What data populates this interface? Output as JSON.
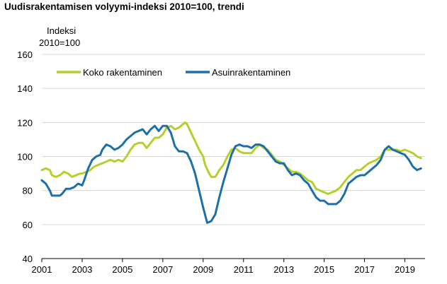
{
  "chart_title": "Uudisrakentamisen volyymi-indeksi 2010=100, trendi",
  "chart_data": {
    "type": "line",
    "title": "Uudisrakentamisen volyymi-indeksi 2010=100, trendi",
    "ylabel_lines": [
      "Indeksi",
      "2010=100"
    ],
    "xlabel": "",
    "xlim": [
      2001,
      2020
    ],
    "ylim": [
      40,
      160
    ],
    "yticks": [
      40,
      60,
      80,
      100,
      120,
      140,
      160
    ],
    "xticks": [
      2001,
      2003,
      2005,
      2007,
      2009,
      2011,
      2013,
      2015,
      2017,
      2019
    ],
    "grid": true,
    "legend_position": "top-left",
    "series": [
      {
        "name": "Koko rakentaminen",
        "color": "#b5cf2b",
        "points": [
          [
            2001.0,
            92
          ],
          [
            2001.2,
            93
          ],
          [
            2001.4,
            92
          ],
          [
            2001.5,
            89
          ],
          [
            2001.7,
            88
          ],
          [
            2001.9,
            89
          ],
          [
            2002.0,
            90
          ],
          [
            2002.1,
            91
          ],
          [
            2002.3,
            90
          ],
          [
            2002.5,
            88
          ],
          [
            2002.7,
            89
          ],
          [
            2002.9,
            90
          ],
          [
            2003.0,
            90
          ],
          [
            2003.2,
            91
          ],
          [
            2003.4,
            92
          ],
          [
            2003.6,
            94
          ],
          [
            2003.8,
            95
          ],
          [
            2004.0,
            96
          ],
          [
            2004.2,
            97
          ],
          [
            2004.4,
            98
          ],
          [
            2004.6,
            97
          ],
          [
            2004.8,
            98
          ],
          [
            2005.0,
            97
          ],
          [
            2005.2,
            100
          ],
          [
            2005.4,
            104
          ],
          [
            2005.6,
            107
          ],
          [
            2005.8,
            108
          ],
          [
            2006.0,
            108
          ],
          [
            2006.2,
            105
          ],
          [
            2006.4,
            108
          ],
          [
            2006.6,
            111
          ],
          [
            2006.8,
            111
          ],
          [
            2007.0,
            113
          ],
          [
            2007.2,
            117
          ],
          [
            2007.4,
            118
          ],
          [
            2007.6,
            116
          ],
          [
            2007.8,
            117
          ],
          [
            2008.0,
            119
          ],
          [
            2008.1,
            120
          ],
          [
            2008.2,
            119
          ],
          [
            2008.4,
            114
          ],
          [
            2008.6,
            109
          ],
          [
            2008.8,
            104
          ],
          [
            2009.0,
            100
          ],
          [
            2009.1,
            95
          ],
          [
            2009.3,
            90
          ],
          [
            2009.4,
            88
          ],
          [
            2009.6,
            88
          ],
          [
            2009.8,
            92
          ],
          [
            2010.0,
            95
          ],
          [
            2010.2,
            100
          ],
          [
            2010.4,
            104
          ],
          [
            2010.6,
            105
          ],
          [
            2010.8,
            103
          ],
          [
            2011.0,
            102
          ],
          [
            2011.2,
            102
          ],
          [
            2011.4,
            102
          ],
          [
            2011.6,
            105
          ],
          [
            2011.8,
            107
          ],
          [
            2012.0,
            105
          ],
          [
            2012.2,
            104
          ],
          [
            2012.4,
            101
          ],
          [
            2012.6,
            98
          ],
          [
            2012.8,
            97
          ],
          [
            2013.0,
            95
          ],
          [
            2013.2,
            93
          ],
          [
            2013.4,
            91
          ],
          [
            2013.6,
            91
          ],
          [
            2013.8,
            90
          ],
          [
            2014.0,
            88
          ],
          [
            2014.2,
            86
          ],
          [
            2014.4,
            85
          ],
          [
            2014.6,
            81
          ],
          [
            2014.8,
            80
          ],
          [
            2015.0,
            79
          ],
          [
            2015.2,
            78
          ],
          [
            2015.4,
            79
          ],
          [
            2015.6,
            80
          ],
          [
            2015.8,
            82
          ],
          [
            2016.0,
            85
          ],
          [
            2016.2,
            88
          ],
          [
            2016.4,
            90
          ],
          [
            2016.6,
            92
          ],
          [
            2016.8,
            92
          ],
          [
            2017.0,
            94
          ],
          [
            2017.2,
            96
          ],
          [
            2017.4,
            97
          ],
          [
            2017.6,
            98
          ],
          [
            2017.8,
            100
          ],
          [
            2018.0,
            104
          ],
          [
            2018.2,
            104
          ],
          [
            2018.4,
            104
          ],
          [
            2018.6,
            104
          ],
          [
            2018.8,
            103
          ],
          [
            2019.0,
            104
          ],
          [
            2019.2,
            103
          ],
          [
            2019.4,
            102
          ],
          [
            2019.6,
            100
          ],
          [
            2019.8,
            99
          ]
        ]
      },
      {
        "name": "Asuinrakentaminen",
        "color": "#1d6fa9",
        "points": [
          [
            2001.0,
            86
          ],
          [
            2001.2,
            84
          ],
          [
            2001.4,
            80
          ],
          [
            2001.5,
            77
          ],
          [
            2001.7,
            77
          ],
          [
            2001.9,
            77
          ],
          [
            2002.0,
            78
          ],
          [
            2002.2,
            81
          ],
          [
            2002.4,
            81
          ],
          [
            2002.6,
            82
          ],
          [
            2002.8,
            84
          ],
          [
            2003.0,
            83
          ],
          [
            2003.1,
            86
          ],
          [
            2003.3,
            93
          ],
          [
            2003.5,
            98
          ],
          [
            2003.7,
            100
          ],
          [
            2003.9,
            101
          ],
          [
            2004.0,
            104
          ],
          [
            2004.2,
            107
          ],
          [
            2004.4,
            106
          ],
          [
            2004.6,
            104
          ],
          [
            2004.8,
            105
          ],
          [
            2005.0,
            107
          ],
          [
            2005.2,
            110
          ],
          [
            2005.4,
            112
          ],
          [
            2005.6,
            114
          ],
          [
            2005.8,
            115
          ],
          [
            2006.0,
            116
          ],
          [
            2006.2,
            113
          ],
          [
            2006.4,
            116
          ],
          [
            2006.6,
            118
          ],
          [
            2006.8,
            115
          ],
          [
            2007.0,
            118
          ],
          [
            2007.2,
            118
          ],
          [
            2007.4,
            114
          ],
          [
            2007.6,
            106
          ],
          [
            2007.8,
            103
          ],
          [
            2008.0,
            103
          ],
          [
            2008.2,
            102
          ],
          [
            2008.4,
            97
          ],
          [
            2008.6,
            90
          ],
          [
            2008.8,
            80
          ],
          [
            2009.0,
            70
          ],
          [
            2009.2,
            61
          ],
          [
            2009.4,
            62
          ],
          [
            2009.6,
            66
          ],
          [
            2009.8,
            76
          ],
          [
            2010.0,
            85
          ],
          [
            2010.2,
            93
          ],
          [
            2010.4,
            101
          ],
          [
            2010.6,
            106
          ],
          [
            2010.8,
            107
          ],
          [
            2011.0,
            106
          ],
          [
            2011.2,
            106
          ],
          [
            2011.4,
            105
          ],
          [
            2011.6,
            107
          ],
          [
            2011.8,
            107
          ],
          [
            2012.0,
            106
          ],
          [
            2012.2,
            103
          ],
          [
            2012.4,
            100
          ],
          [
            2012.6,
            97
          ],
          [
            2012.8,
            96
          ],
          [
            2013.0,
            96
          ],
          [
            2013.2,
            92
          ],
          [
            2013.4,
            89
          ],
          [
            2013.6,
            90
          ],
          [
            2013.8,
            89
          ],
          [
            2014.0,
            86
          ],
          [
            2014.2,
            84
          ],
          [
            2014.4,
            80
          ],
          [
            2014.6,
            76
          ],
          [
            2014.8,
            74
          ],
          [
            2015.0,
            74
          ],
          [
            2015.2,
            72
          ],
          [
            2015.4,
            72
          ],
          [
            2015.6,
            72
          ],
          [
            2015.8,
            74
          ],
          [
            2016.0,
            78
          ],
          [
            2016.2,
            84
          ],
          [
            2016.4,
            86
          ],
          [
            2016.6,
            88
          ],
          [
            2016.8,
            89
          ],
          [
            2017.0,
            89
          ],
          [
            2017.2,
            91
          ],
          [
            2017.4,
            93
          ],
          [
            2017.6,
            95
          ],
          [
            2017.8,
            98
          ],
          [
            2018.0,
            104
          ],
          [
            2018.2,
            106
          ],
          [
            2018.4,
            104
          ],
          [
            2018.6,
            103
          ],
          [
            2018.8,
            102
          ],
          [
            2019.0,
            101
          ],
          [
            2019.2,
            98
          ],
          [
            2019.4,
            94
          ],
          [
            2019.6,
            92
          ],
          [
            2019.8,
            93
          ]
        ]
      }
    ]
  }
}
